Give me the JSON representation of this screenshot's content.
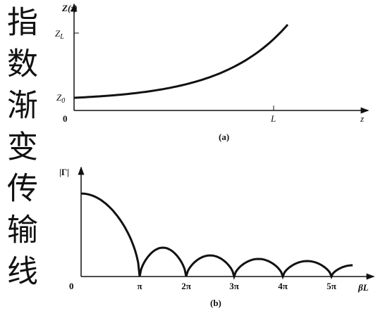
{
  "title": "指数渐变传输线",
  "plot_a": {
    "y_label": "Z(z)",
    "zl": {
      "base": "Z",
      "sub": "L"
    },
    "z0": {
      "base": "Z",
      "sub": "0"
    },
    "origin": "0",
    "l_tick": "L",
    "x_label": "z",
    "caption": "(a)"
  },
  "plot_b": {
    "y_label": "|Γ|",
    "origin": "0",
    "ticks": [
      "π",
      "2π",
      "3π",
      "4π",
      "5π"
    ],
    "x_label": "βL",
    "caption": "(b)"
  }
}
